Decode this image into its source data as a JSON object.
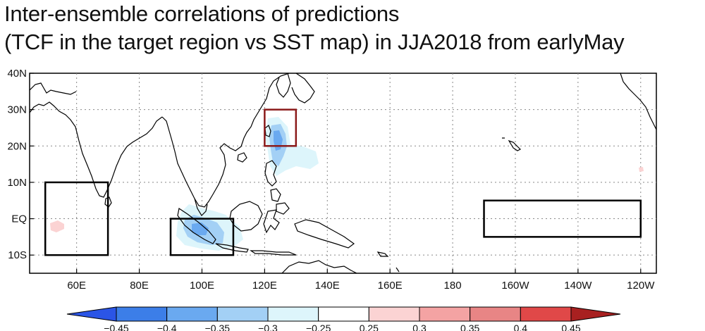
{
  "title": {
    "line1": "Inter-ensemble correlations of predictions",
    "line2": "(TCF in the target region vs SST map) in JJA2018 from earlyMay"
  },
  "map": {
    "lon_range": [
      45,
      245
    ],
    "lat_range": [
      -15,
      40
    ],
    "x_ticks": [
      {
        "lon": 60,
        "label": "60E"
      },
      {
        "lon": 80,
        "label": "80E"
      },
      {
        "lon": 100,
        "label": "100E"
      },
      {
        "lon": 120,
        "label": "120E"
      },
      {
        "lon": 140,
        "label": "140E"
      },
      {
        "lon": 160,
        "label": "160E"
      },
      {
        "lon": 180,
        "label": "180"
      },
      {
        "lon": 200,
        "label": "160W"
      },
      {
        "lon": 220,
        "label": "140W"
      },
      {
        "lon": 240,
        "label": "120W"
      }
    ],
    "y_ticks": [
      {
        "lat": 40,
        "label": "40N"
      },
      {
        "lat": 30,
        "label": "30N"
      },
      {
        "lat": 20,
        "label": "20N"
      },
      {
        "lat": 10,
        "label": "10N"
      },
      {
        "lat": 0,
        "label": "EQ"
      },
      {
        "lat": -10,
        "label": "10S"
      }
    ],
    "gridlines": "dotted",
    "boxes": [
      {
        "name": "target-region",
        "lon": [
          120,
          130
        ],
        "lat": [
          20,
          30
        ],
        "color": "#8b1a1a"
      },
      {
        "name": "western-indian-ocean",
        "lon": [
          50,
          70
        ],
        "lat": [
          -10,
          10
        ],
        "color": "#000000"
      },
      {
        "name": "eastern-indian-ocean",
        "lon": [
          90,
          110
        ],
        "lat": [
          -10,
          0
        ],
        "color": "#000000"
      },
      {
        "name": "central-pacific",
        "lon": [
          190,
          240
        ],
        "lat": [
          -5,
          5
        ],
        "color": "#000000"
      }
    ]
  },
  "colorbar": {
    "colors": [
      "#2b55e6",
      "#3c7ee8",
      "#6aa9f0",
      "#a3d0f5",
      "#ddf5fb",
      "#ffffff",
      "#fbd3d3",
      "#f4a3a3",
      "#e88585",
      "#e04848",
      "#a82020"
    ],
    "labels": [
      "−0.45",
      "−0.4",
      "−0.35",
      "−0.3",
      "−0.25",
      "0.25",
      "0.3",
      "0.35",
      "0.4",
      "0.45"
    ]
  }
}
